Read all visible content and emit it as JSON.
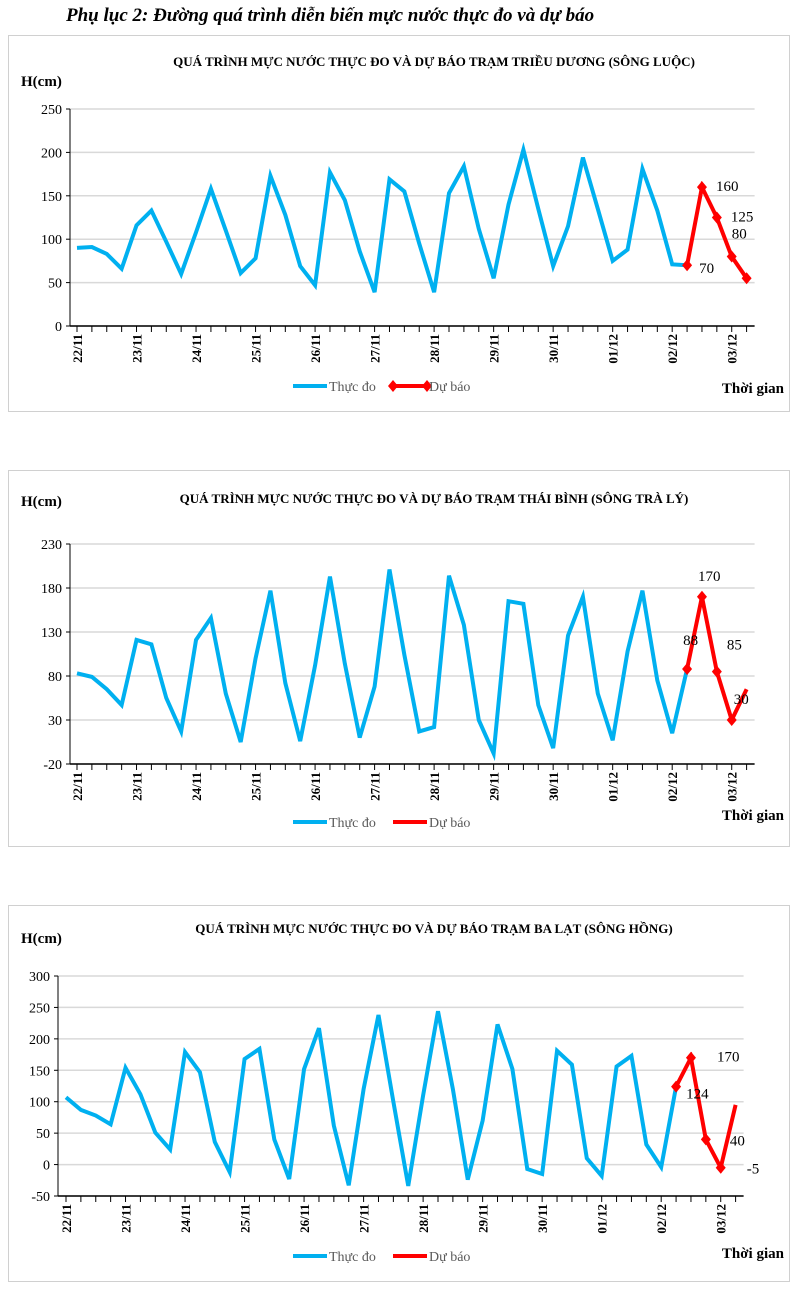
{
  "page_title": "Phụ lục 2: Đường quá trình diễn biến mực nước thực đo và dự báo",
  "chart_data": [
    {
      "type": "line",
      "title": "QUÁ TRÌNH MỰC NƯỚC THỰC ĐO VÀ DỰ BÁO TRẠM TRIỀU DƯƠNG (SÔNG LUỘC)",
      "ylabel": "H(cm)",
      "xlabel": "Thời gian",
      "ylim": [
        0,
        250
      ],
      "yticks": [
        0,
        50,
        100,
        150,
        200,
        250
      ],
      "x_tick_labels": [
        "22/11",
        "23/11",
        "24/11",
        "25/11",
        "26/11",
        "27/11",
        "28/11",
        "29/11",
        "30/11",
        "01/12",
        "02/12",
        "03/12"
      ],
      "points_per_day": 4,
      "grid": true,
      "legend_position": "bottom",
      "series": [
        {
          "name": "Thực đo",
          "color": "#00b0f0",
          "start_index": 0,
          "values": [
            90,
            91,
            83,
            66,
            116,
            133,
            97,
            60,
            108,
            158,
            110,
            61,
            78,
            173,
            128,
            69,
            47,
            177,
            145,
            86,
            39,
            169,
            155,
            95,
            39,
            153,
            184,
            112,
            55,
            140,
            203,
            135,
            69,
            115,
            194,
            135,
            75,
            88,
            181,
            133,
            71,
            70
          ]
        },
        {
          "name": "Dự báo",
          "color": "#ff0000",
          "start_index": 41,
          "markers": true,
          "values": [
            70,
            160,
            125,
            80,
            55
          ],
          "labels": [
            "70",
            "160",
            "125",
            "80",
            null
          ]
        }
      ]
    },
    {
      "type": "line",
      "title": "QUÁ TRÌNH MỰC NƯỚC THỰC ĐO VÀ DỰ BÁO TRẠM THÁI BÌNH (SÔNG TRÀ LÝ)",
      "ylabel": "H(cm)",
      "xlabel": "Thời gian",
      "ylim": [
        -20,
        230
      ],
      "yticks": [
        -20,
        30,
        80,
        130,
        180,
        230
      ],
      "x_tick_labels": [
        "22/11",
        "23/11",
        "24/11",
        "25/11",
        "26/11",
        "27/11",
        "28/11",
        "29/11",
        "30/11",
        "01/12",
        "02/12",
        "03/12"
      ],
      "points_per_day": 4,
      "grid": true,
      "legend_position": "bottom",
      "series": [
        {
          "name": "Thực đo",
          "color": "#00b0f0",
          "start_index": 0,
          "values": [
            83,
            79,
            65,
            47,
            121,
            116,
            55,
            17,
            121,
            146,
            60,
            5,
            100,
            177,
            72,
            6,
            92,
            193,
            94,
            10,
            68,
            201,
            104,
            17,
            22,
            194,
            138,
            30,
            -8,
            165,
            162,
            47,
            -2,
            126,
            170,
            60,
            7,
            108,
            177,
            75,
            15,
            88
          ]
        },
        {
          "name": "Dự báo",
          "color": "#ff0000",
          "start_index": 41,
          "markers": true,
          "values": [
            88,
            170,
            85,
            30,
            65
          ],
          "labels": [
            "88",
            "170",
            "85",
            "30",
            null
          ]
        }
      ]
    },
    {
      "type": "line",
      "title": "QUÁ TRÌNH MỰC NƯỚC THỰC ĐO VÀ DỰ BÁO TRẠM BA LẠT (SÔNG HỒNG)",
      "ylabel": "H(cm)",
      "xlabel": "Thời gian",
      "ylim": [
        -50,
        300
      ],
      "yticks": [
        -50,
        0,
        50,
        100,
        150,
        200,
        250,
        300
      ],
      "x_tick_labels": [
        "22/11",
        "23/11",
        "24/11",
        "25/11",
        "26/11",
        "27/11",
        "28/11",
        "29/11",
        "30/11",
        "01/12",
        "02/12",
        "03/12"
      ],
      "points_per_day": 4,
      "grid": true,
      "legend_position": "bottom",
      "series": [
        {
          "name": "Thực đo",
          "color": "#00b0f0",
          "start_index": 0,
          "values": [
            107,
            87,
            78,
            64,
            154,
            112,
            51,
            24,
            179,
            147,
            36,
            -12,
            168,
            184,
            40,
            -23,
            152,
            217,
            62,
            -33,
            120,
            238,
            100,
            -34,
            110,
            244,
            120,
            -24,
            70,
            223,
            152,
            -7,
            -15,
            181,
            159,
            10,
            -18,
            156,
            173,
            32,
            -4,
            124
          ]
        },
        {
          "name": "Dự báo",
          "color": "#ff0000",
          "start_index": 41,
          "markers": true,
          "values": [
            124,
            170,
            40,
            -5,
            95
          ],
          "labels": [
            "124",
            "170",
            "40",
            "-5",
            null
          ]
        }
      ]
    }
  ]
}
